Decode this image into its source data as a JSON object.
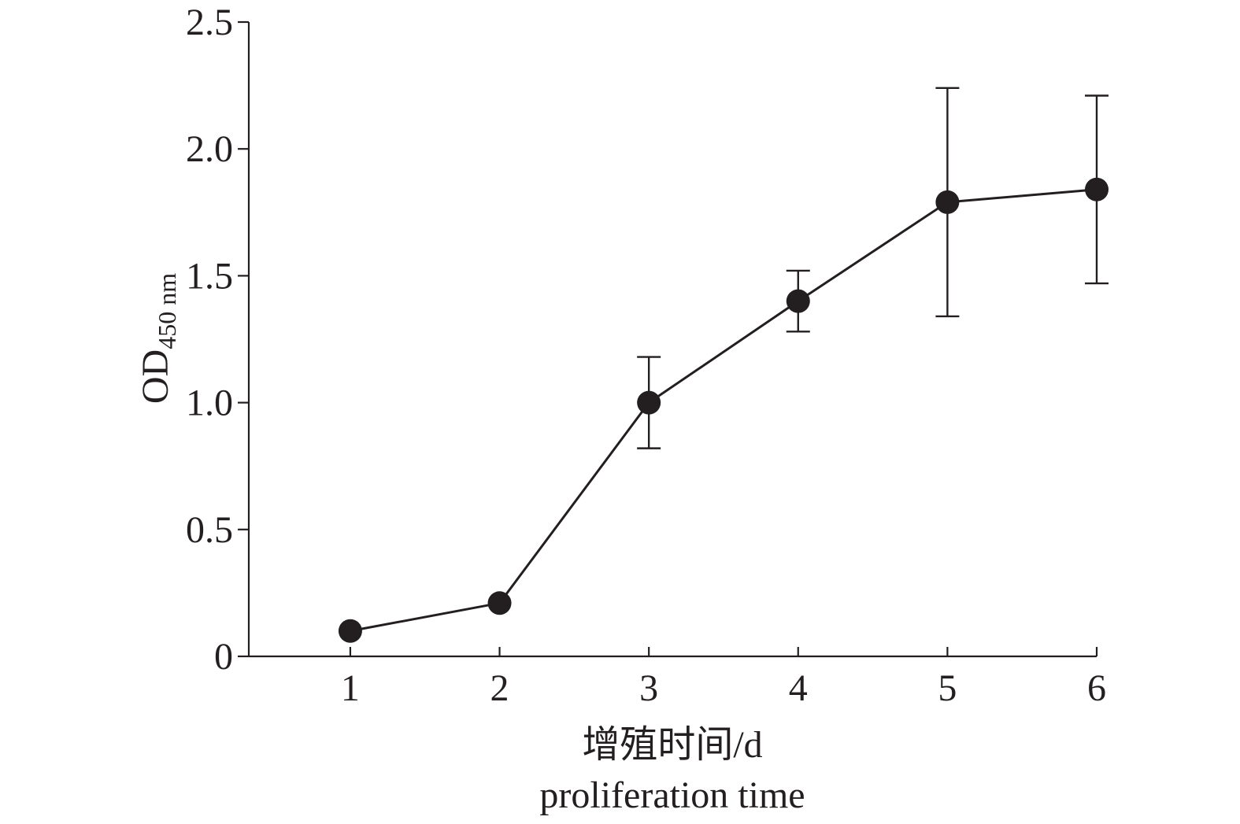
{
  "chart_data": {
    "type": "line",
    "x": [
      1,
      2,
      3,
      4,
      5,
      6
    ],
    "series": [
      {
        "values": [
          0.1,
          0.21,
          1.0,
          1.4,
          1.79,
          1.84
        ],
        "error_high": [
          null,
          null,
          1.18,
          1.52,
          2.24,
          2.21
        ],
        "error_low": [
          null,
          null,
          0.82,
          1.28,
          1.34,
          1.47
        ],
        "color": "#231f20",
        "marker": "filled-circle"
      }
    ],
    "x_ticks": [
      "1",
      "2",
      "3",
      "4",
      "5",
      "6"
    ],
    "y_ticks": [
      "0",
      "0.5",
      "1.0",
      "1.5",
      "2.0",
      "2.5"
    ],
    "y_tick_values": [
      0,
      0.5,
      1.0,
      1.5,
      2.0,
      2.5
    ],
    "xlim": [
      0.32,
      6
    ],
    "ylim": [
      0,
      2.5
    ],
    "xlabel_zh": "增殖时间/d",
    "xlabel_en": "proliferation time",
    "ylabel_main": "OD",
    "ylabel_sub": "450 nm",
    "grid": false,
    "legend": false
  }
}
